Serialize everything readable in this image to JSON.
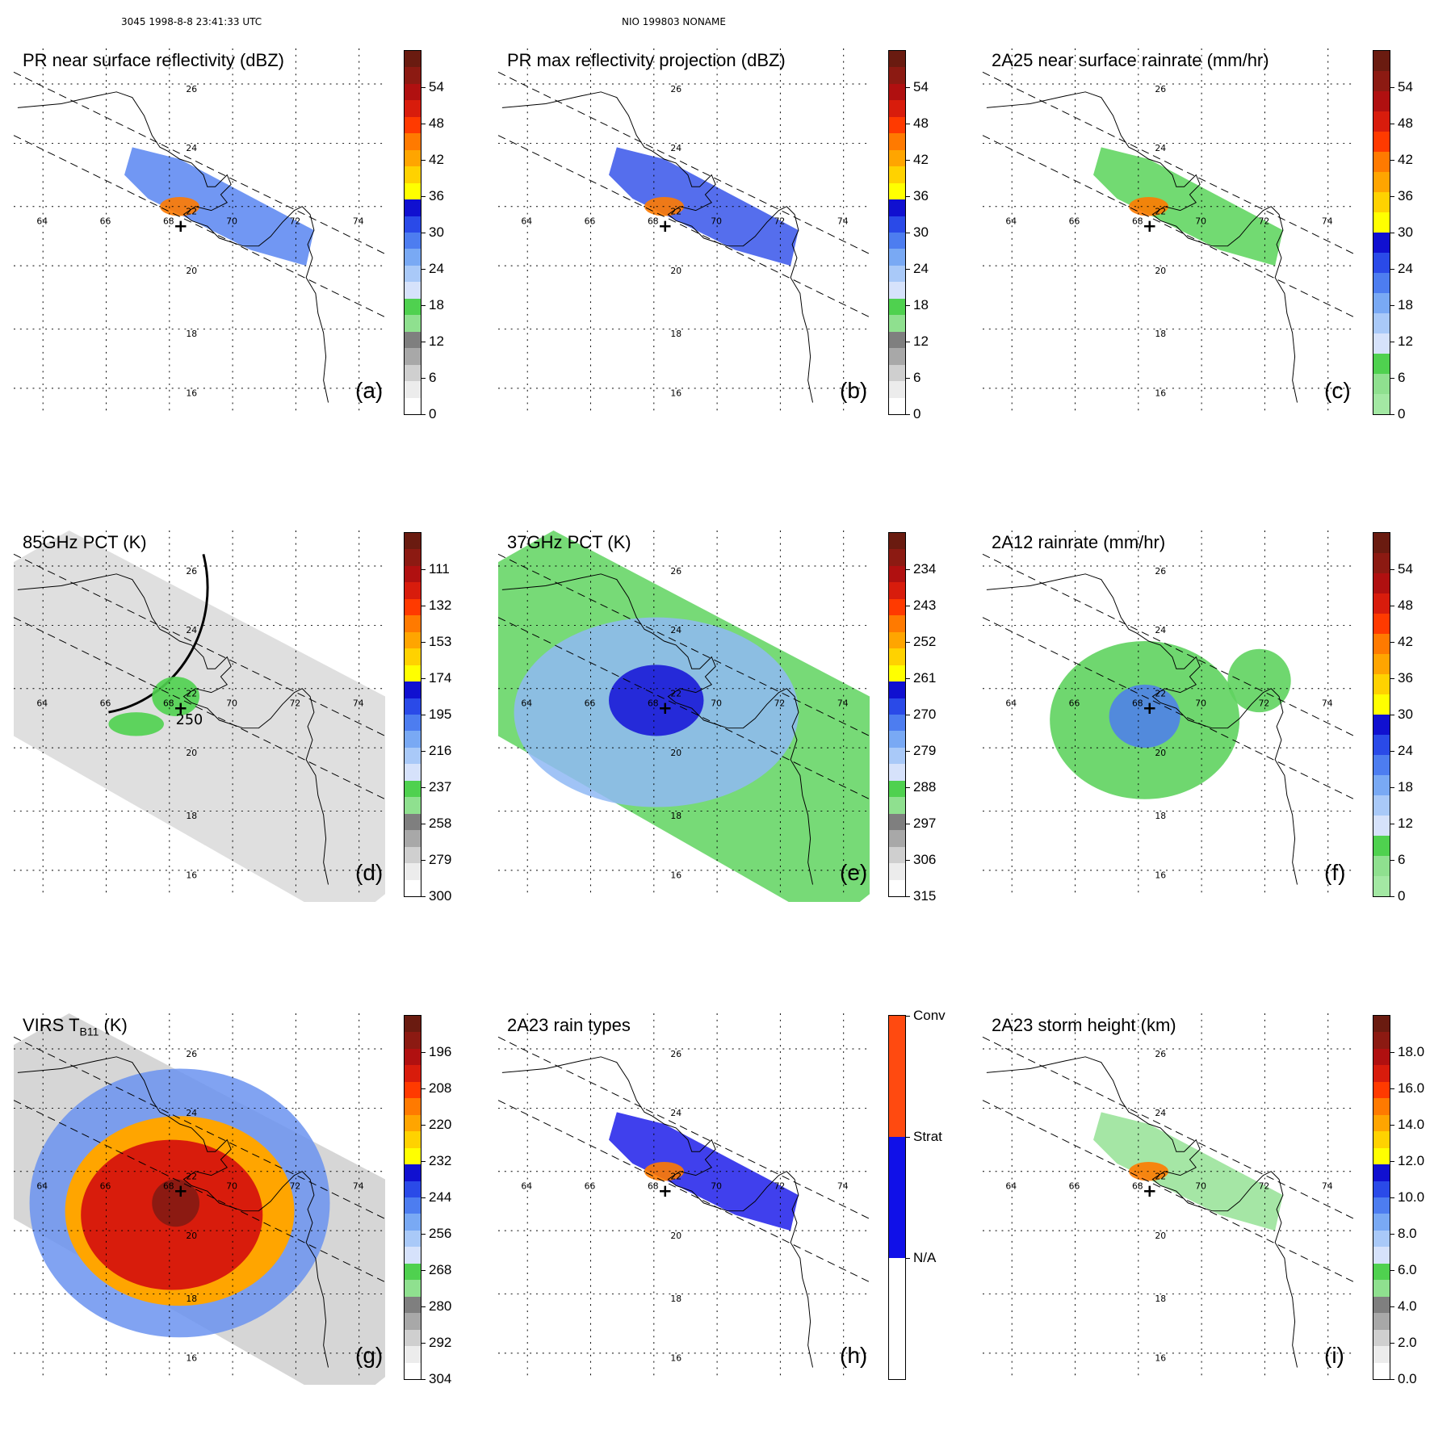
{
  "header": {
    "left": "3045 1998-8-8 23:41:33 UTC",
    "center": "NIO 199803 NONAME"
  },
  "grid_labels": {
    "lon": [
      "64",
      "66",
      "68",
      "70",
      "72",
      "74"
    ],
    "lat": [
      "26",
      "24",
      "22",
      "20",
      "18",
      "16"
    ]
  },
  "panels": [
    {
      "id": "a",
      "label": "(a)",
      "title": "PR near surface reflectivity (dBZ)",
      "ticks": [
        "54",
        "48",
        "42",
        "36",
        "30",
        "24",
        "18",
        "12",
        "6",
        "0"
      ],
      "colors": [
        "#6a1b10",
        "#8c1a12",
        "#b01010",
        "#d81c0c",
        "#ff3a00",
        "#ff7a00",
        "#ffa500",
        "#ffd200",
        "#ffff00",
        "#1010d0",
        "#2a4ae8",
        "#4d7df0",
        "#79a9f4",
        "#a9c9f8",
        "#d6e2fb",
        "#4fd14f",
        "#8fe08f",
        "#7f7f7f",
        "#a8a8a8",
        "#cfcfcf",
        "#ececec",
        "#ffffff"
      ]
    },
    {
      "id": "b",
      "label": "(b)",
      "title": "PR max reflectivity projection (dBZ)",
      "ticks": [
        "54",
        "48",
        "42",
        "36",
        "30",
        "24",
        "18",
        "12",
        "6",
        "0"
      ],
      "colors": [
        "#6a1b10",
        "#8c1a12",
        "#b01010",
        "#d81c0c",
        "#ff3a00",
        "#ff7a00",
        "#ffa500",
        "#ffd200",
        "#ffff00",
        "#1010d0",
        "#2a4ae8",
        "#4d7df0",
        "#79a9f4",
        "#a9c9f8",
        "#d6e2fb",
        "#4fd14f",
        "#8fe08f",
        "#7f7f7f",
        "#a8a8a8",
        "#cfcfcf",
        "#ececec",
        "#ffffff"
      ]
    },
    {
      "id": "c",
      "label": "(c)",
      "title": "2A25 near surface rainrate (mm/hr)",
      "ticks": [
        "54",
        "48",
        "42",
        "36",
        "30",
        "24",
        "18",
        "12",
        "6",
        "0"
      ],
      "colors": [
        "#6a1b10",
        "#8c1a12",
        "#b01010",
        "#d81c0c",
        "#ff3a00",
        "#ff7a00",
        "#ffa500",
        "#ffd200",
        "#ffff00",
        "#1010d0",
        "#2a4ae8",
        "#4d7df0",
        "#79a9f4",
        "#a9c9f8",
        "#d6e2fb",
        "#4fd14f",
        "#8fe08f",
        "#a3e8a3"
      ]
    },
    {
      "id": "d",
      "label": "(d)",
      "title": "85GHz PCT (K)",
      "ticks": [
        "111",
        "132",
        "153",
        "174",
        "195",
        "216",
        "237",
        "258",
        "279",
        "300"
      ],
      "colors": [
        "#6a1b10",
        "#8c1a12",
        "#b01010",
        "#d81c0c",
        "#ff3a00",
        "#ff7a00",
        "#ffa500",
        "#ffd200",
        "#ffff00",
        "#1010d0",
        "#2a4ae8",
        "#4d7df0",
        "#79a9f4",
        "#a9c9f8",
        "#d6e2fb",
        "#4fd14f",
        "#8fe08f",
        "#7f7f7f",
        "#a8a8a8",
        "#cfcfcf",
        "#ececec",
        "#ffffff"
      ]
    },
    {
      "id": "e",
      "label": "(e)",
      "title": "37GHz PCT (K)",
      "ticks": [
        "234",
        "243",
        "252",
        "261",
        "270",
        "279",
        "288",
        "297",
        "306",
        "315"
      ],
      "colors": [
        "#6a1b10",
        "#8c1a12",
        "#b01010",
        "#d81c0c",
        "#ff3a00",
        "#ff7a00",
        "#ffa500",
        "#ffd200",
        "#ffff00",
        "#1010d0",
        "#2a4ae8",
        "#4d7df0",
        "#79a9f4",
        "#a9c9f8",
        "#d6e2fb",
        "#4fd14f",
        "#8fe08f",
        "#7f7f7f",
        "#a8a8a8",
        "#cfcfcf",
        "#ececec",
        "#ffffff"
      ]
    },
    {
      "id": "f",
      "label": "(f)",
      "title": "2A12 rainrate (mm/hr)",
      "ticks": [
        "54",
        "48",
        "42",
        "36",
        "30",
        "24",
        "18",
        "12",
        "6",
        "0"
      ],
      "colors": [
        "#6a1b10",
        "#8c1a12",
        "#b01010",
        "#d81c0c",
        "#ff3a00",
        "#ff7a00",
        "#ffa500",
        "#ffd200",
        "#ffff00",
        "#1010d0",
        "#2a4ae8",
        "#4d7df0",
        "#79a9f4",
        "#a9c9f8",
        "#d6e2fb",
        "#4fd14f",
        "#8fe08f",
        "#a3e8a3"
      ]
    },
    {
      "id": "g",
      "label": "(g)",
      "title": "VIRS T",
      "title_sub": "B11",
      "title_tail": " (K)",
      "ticks": [
        "196",
        "208",
        "220",
        "232",
        "244",
        "256",
        "268",
        "280",
        "292",
        "304"
      ],
      "colors": [
        "#6a1b10",
        "#8c1a12",
        "#b01010",
        "#d81c0c",
        "#ff3a00",
        "#ff7a00",
        "#ffa500",
        "#ffd200",
        "#ffff00",
        "#1010d0",
        "#2a4ae8",
        "#4d7df0",
        "#79a9f4",
        "#a9c9f8",
        "#d6e2fb",
        "#4fd14f",
        "#8fe08f",
        "#7f7f7f",
        "#a8a8a8",
        "#cfcfcf",
        "#ececec",
        "#ffffff"
      ]
    },
    {
      "id": "h",
      "label": "(h)",
      "title": "2A23 rain types",
      "ticks": [
        "Conv",
        "Strat",
        "N/A"
      ],
      "colors": [
        "#ff4a10",
        "#1010e8",
        "#ffffff"
      ]
    },
    {
      "id": "i",
      "label": "(i)",
      "title": "2A23 storm height (km)",
      "ticks": [
        "18.0",
        "16.0",
        "14.0",
        "12.0",
        "10.0",
        "8.0",
        "6.0",
        "4.0",
        "2.0",
        "0.0"
      ],
      "colors": [
        "#6a1b10",
        "#8c1a12",
        "#b01010",
        "#d81c0c",
        "#ff3a00",
        "#ff7a00",
        "#ffa500",
        "#ffd200",
        "#ffff00",
        "#1010d0",
        "#2a4ae8",
        "#4d7df0",
        "#79a9f4",
        "#a9c9f8",
        "#d6e2fb",
        "#4fd14f",
        "#8fe08f",
        "#7f7f7f",
        "#a8a8a8",
        "#cfcfcf",
        "#ececec",
        "#ffffff"
      ]
    }
  ],
  "annotations": {
    "contour_d": "250"
  }
}
